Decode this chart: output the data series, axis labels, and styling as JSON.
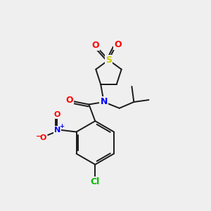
{
  "bg_color": "#efefef",
  "bond_color": "#1a1a1a",
  "atom_colors": {
    "O": "#ff0000",
    "N": "#0000ff",
    "S": "#cccc00",
    "Cl": "#00bb00",
    "C": "#1a1a1a"
  },
  "figsize": [
    3.0,
    3.0
  ],
  "dpi": 100
}
